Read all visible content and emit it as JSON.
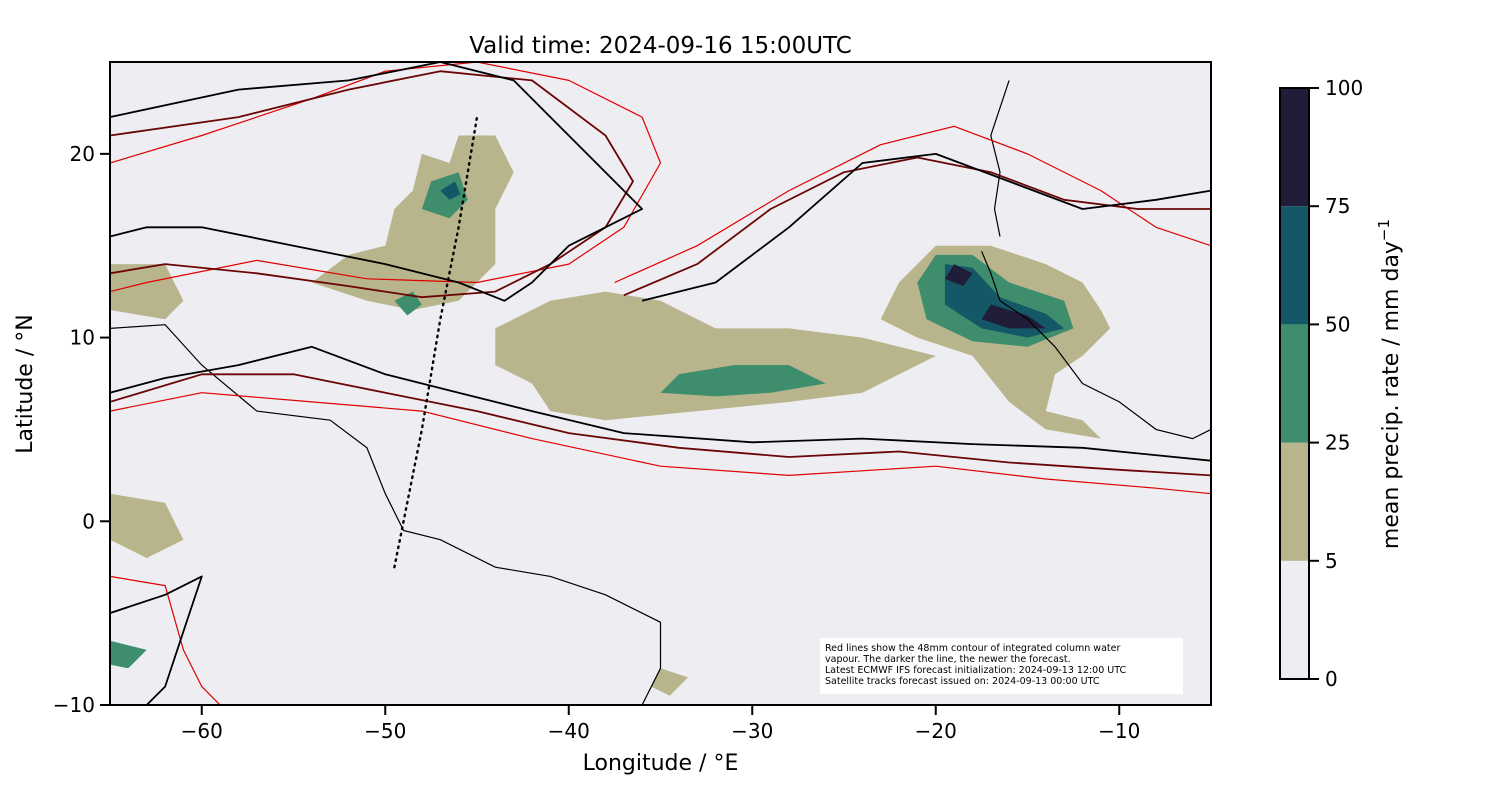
{
  "chart_data": {
    "type": "map",
    "title": "Valid time: 2024-09-16 15:00UTC",
    "xlabel": "Longitude / °E",
    "ylabel": "Latitude / °N",
    "xlim": [
      -65,
      -5
    ],
    "ylim": [
      -10,
      25
    ],
    "xticks": [
      -60,
      -50,
      -40,
      -30,
      -20,
      -10
    ],
    "yticks": [
      -10,
      0,
      10,
      20
    ],
    "xtick_labels": [
      "−60",
      "−50",
      "−40",
      "−30",
      "−20",
      "−10"
    ],
    "ytick_labels": [
      "−10",
      "0",
      "10",
      "20"
    ],
    "colorbar": {
      "label": "mean precip. rate / mm day",
      "label_superscript": "−1",
      "levels": [
        0,
        5,
        25,
        50,
        75,
        100
      ],
      "level_labels": [
        "0",
        "5",
        "25",
        "50",
        "75",
        "100"
      ],
      "colors": [
        "#ededf2",
        "#b8b48c",
        "#3e8d6d",
        "#145766",
        "#201d39"
      ]
    },
    "annotation_lines": [
      "Red lines show the 48mm contour of integrated column water",
      "vapour. The darker the line, the newer the forecast.",
      "Latest ECMWF IFS forecast initialization: 2024-09-13 12:00 UTC",
      "Satellite tracks forecast issued on: 2024-09-13 00:00 UTC"
    ],
    "satellite_track": [
      [
        -49.5,
        -2.5
      ],
      [
        -48,
        5
      ],
      [
        -47,
        11
      ],
      [
        -46,
        16
      ],
      [
        -45,
        22
      ]
    ],
    "precip_areas": [
      {
        "level": 1,
        "points": [
          [
            -46.5,
            19.5
          ],
          [
            -48,
            20
          ],
          [
            -48.5,
            18
          ],
          [
            -49.5,
            17
          ],
          [
            -50,
            15
          ],
          [
            -52,
            14.5
          ],
          [
            -54,
            13
          ],
          [
            -51,
            12
          ],
          [
            -48.5,
            11.5
          ],
          [
            -46,
            12
          ],
          [
            -44,
            14
          ],
          [
            -44,
            17
          ],
          [
            -43,
            19
          ],
          [
            -44,
            21
          ],
          [
            -46,
            21
          ]
        ]
      },
      {
        "level": 2,
        "points": [
          [
            -46,
            19
          ],
          [
            -47.5,
            18.5
          ],
          [
            -48,
            17
          ],
          [
            -46.5,
            16.5
          ],
          [
            -45.5,
            17.5
          ]
        ]
      },
      {
        "level": 3,
        "points": [
          [
            -46.2,
            18.5
          ],
          [
            -47,
            18
          ],
          [
            -46.5,
            17.5
          ],
          [
            -45.9,
            17.8
          ]
        ]
      },
      {
        "level": 2,
        "points": [
          [
            -48.5,
            12.5
          ],
          [
            -49.5,
            12
          ],
          [
            -48.8,
            11.2
          ],
          [
            -48,
            11.8
          ]
        ]
      },
      {
        "level": 1,
        "points": [
          [
            -41,
            12
          ],
          [
            -38,
            12.5
          ],
          [
            -35,
            12
          ],
          [
            -32,
            10.5
          ],
          [
            -28,
            10.5
          ],
          [
            -24,
            10
          ],
          [
            -20,
            9
          ],
          [
            -24,
            7
          ],
          [
            -28,
            6.5
          ],
          [
            -33,
            6
          ],
          [
            -38,
            5.5
          ],
          [
            -41,
            6
          ],
          [
            -42,
            7.5
          ],
          [
            -44,
            8.5
          ],
          [
            -44,
            10.5
          ]
        ]
      },
      {
        "level": 2,
        "points": [
          [
            -34,
            8
          ],
          [
            -31,
            8.5
          ],
          [
            -28,
            8.5
          ],
          [
            -26,
            7.5
          ],
          [
            -29,
            7
          ],
          [
            -32,
            6.8
          ],
          [
            -35,
            7
          ]
        ]
      },
      {
        "level": 1,
        "points": [
          [
            -20,
            15
          ],
          [
            -17,
            15
          ],
          [
            -14,
            14
          ],
          [
            -12,
            13
          ],
          [
            -11,
            11.5
          ],
          [
            -10.5,
            10.5
          ],
          [
            -12,
            9
          ],
          [
            -13.5,
            8
          ],
          [
            -14,
            6
          ],
          [
            -12,
            5.5
          ],
          [
            -11,
            4.5
          ],
          [
            -14,
            5
          ],
          [
            -16,
            6.5
          ],
          [
            -18,
            9
          ],
          [
            -21,
            10
          ],
          [
            -23,
            11
          ],
          [
            -22,
            13
          ]
        ]
      },
      {
        "level": 2,
        "points": [
          [
            -20,
            14.5
          ],
          [
            -18,
            14.5
          ],
          [
            -16,
            13
          ],
          [
            -13,
            12
          ],
          [
            -12.5,
            10.5
          ],
          [
            -15,
            9.5
          ],
          [
            -18,
            9.8
          ],
          [
            -20.5,
            11
          ],
          [
            -21,
            13
          ]
        ]
      },
      {
        "level": 3,
        "points": [
          [
            -19.5,
            14
          ],
          [
            -18,
            13.8
          ],
          [
            -16.5,
            12.2
          ],
          [
            -14,
            11.3
          ],
          [
            -13,
            10.5
          ],
          [
            -15,
            10
          ],
          [
            -17.5,
            10.5
          ],
          [
            -19.5,
            11.8
          ]
        ]
      },
      {
        "level": 4,
        "points": [
          [
            -19,
            14
          ],
          [
            -18,
            13.5
          ],
          [
            -18.5,
            12.8
          ],
          [
            -19.5,
            13.2
          ]
        ]
      },
      {
        "level": 4,
        "points": [
          [
            -17,
            11.8
          ],
          [
            -15,
            11.2
          ],
          [
            -14,
            10.5
          ],
          [
            -16,
            10.5
          ],
          [
            -17.5,
            11
          ]
        ]
      },
      {
        "level": 1,
        "points": [
          [
            -65,
            14
          ],
          [
            -62,
            14
          ],
          [
            -61,
            12
          ],
          [
            -62,
            11
          ],
          [
            -65,
            11.5
          ]
        ]
      },
      {
        "level": 1,
        "points": [
          [
            -65,
            1.5
          ],
          [
            -62,
            1
          ],
          [
            -61,
            -1
          ],
          [
            -63,
            -2
          ],
          [
            -65,
            -1
          ]
        ]
      },
      {
        "level": 2,
        "points": [
          [
            -65,
            -6.5
          ],
          [
            -63,
            -7
          ],
          [
            -64,
            -8
          ],
          [
            -65,
            -7.8
          ]
        ]
      },
      {
        "level": 1,
        "points": [
          [
            -35,
            -8
          ],
          [
            -33.5,
            -8.5
          ],
          [
            -34.5,
            -9.5
          ],
          [
            -35.5,
            -9
          ]
        ]
      }
    ],
    "cwv_contours": [
      {
        "age": "newest",
        "color": "#000000",
        "points": [
          [
            -65,
            22
          ],
          [
            -58,
            23.5
          ],
          [
            -52,
            24
          ],
          [
            -47,
            25
          ],
          [
            -43,
            24
          ],
          [
            -39,
            20
          ],
          [
            -37,
            18
          ],
          [
            -36,
            17
          ],
          [
            -40,
            15
          ],
          [
            -42,
            13
          ],
          [
            -43.5,
            12
          ],
          [
            -46,
            13
          ],
          [
            -50,
            14
          ],
          [
            -55,
            15
          ],
          [
            -60,
            16
          ],
          [
            -63,
            16
          ],
          [
            -65,
            15.5
          ]
        ]
      },
      {
        "age": "newest",
        "color": "#000000",
        "points": [
          [
            -65,
            7
          ],
          [
            -62,
            7.8
          ],
          [
            -58,
            8.5
          ],
          [
            -54,
            9.5
          ],
          [
            -50,
            8
          ],
          [
            -46,
            7
          ],
          [
            -42,
            6
          ],
          [
            -37,
            4.8
          ],
          [
            -30,
            4.3
          ],
          [
            -24,
            4.5
          ],
          [
            -18,
            4.2
          ],
          [
            -12,
            4
          ],
          [
            -5,
            3.3
          ]
        ]
      },
      {
        "age": "newest",
        "color": "#000000",
        "points": [
          [
            -65,
            -5
          ],
          [
            -62,
            -4
          ],
          [
            -60,
            -3
          ],
          [
            -61,
            -6
          ],
          [
            -62,
            -9
          ],
          [
            -63,
            -10
          ]
        ]
      },
      {
        "age": "newest",
        "color": "#000000",
        "points": [
          [
            -36,
            12
          ],
          [
            -32,
            13
          ],
          [
            -28,
            16
          ],
          [
            -24,
            19.5
          ],
          [
            -20,
            20
          ],
          [
            -16,
            18.5
          ],
          [
            -12,
            17
          ],
          [
            -8,
            17.5
          ],
          [
            -5,
            18
          ]
        ]
      },
      {
        "age": "older",
        "color": "#6b0606",
        "points": [
          [
            -65,
            21
          ],
          [
            -58,
            22
          ],
          [
            -52,
            23.5
          ],
          [
            -47,
            24.5
          ],
          [
            -42,
            24
          ],
          [
            -38,
            21
          ],
          [
            -36.5,
            18.5
          ],
          [
            -38,
            16
          ],
          [
            -41,
            14
          ],
          [
            -44,
            12.5
          ],
          [
            -48,
            12.2
          ],
          [
            -52,
            12.8
          ],
          [
            -57,
            13.5
          ],
          [
            -62,
            14
          ],
          [
            -65,
            13.5
          ]
        ]
      },
      {
        "age": "older",
        "color": "#6b0606",
        "points": [
          [
            -65,
            6.5
          ],
          [
            -60,
            8
          ],
          [
            -55,
            8
          ],
          [
            -50,
            7
          ],
          [
            -45,
            6
          ],
          [
            -40,
            4.8
          ],
          [
            -34,
            4
          ],
          [
            -28,
            3.5
          ],
          [
            -22,
            3.8
          ],
          [
            -16,
            3.2
          ],
          [
            -10,
            2.8
          ],
          [
            -5,
            2.5
          ]
        ]
      },
      {
        "age": "older",
        "color": "#6b0606",
        "points": [
          [
            -37,
            12.3
          ],
          [
            -33,
            14
          ],
          [
            -29,
            17
          ],
          [
            -25,
            19
          ],
          [
            -21,
            19.8
          ],
          [
            -17,
            19
          ],
          [
            -13,
            17.5
          ],
          [
            -9,
            17
          ],
          [
            -5,
            17
          ]
        ]
      },
      {
        "age": "oldest",
        "color": "#e00000",
        "points": [
          [
            -65,
            19.5
          ],
          [
            -60,
            21
          ],
          [
            -54,
            23
          ],
          [
            -50,
            24.5
          ],
          [
            -45,
            25
          ],
          [
            -40,
            24
          ],
          [
            -36,
            22
          ],
          [
            -35,
            19.5
          ],
          [
            -37,
            16
          ],
          [
            -40,
            14
          ],
          [
            -45,
            13
          ],
          [
            -51,
            13.2
          ],
          [
            -57,
            14.2
          ],
          [
            -63,
            13
          ],
          [
            -65,
            12.5
          ]
        ]
      },
      {
        "age": "oldest",
        "color": "#e00000",
        "points": [
          [
            -65,
            6
          ],
          [
            -60,
            7
          ],
          [
            -54,
            6.5
          ],
          [
            -48,
            6
          ],
          [
            -42,
            4.5
          ],
          [
            -35,
            3
          ],
          [
            -28,
            2.5
          ],
          [
            -20,
            3
          ],
          [
            -14,
            2.3
          ],
          [
            -8,
            1.8
          ],
          [
            -5,
            1.5
          ]
        ]
      },
      {
        "age": "oldest",
        "color": "#e00000",
        "points": [
          [
            -37.5,
            13
          ],
          [
            -33,
            15
          ],
          [
            -28,
            18
          ],
          [
            -23,
            20.5
          ],
          [
            -19,
            21.5
          ],
          [
            -15,
            20
          ],
          [
            -11,
            18
          ],
          [
            -8,
            16
          ],
          [
            -5,
            15
          ]
        ]
      },
      {
        "age": "oldest",
        "color": "#e00000",
        "points": [
          [
            -65,
            -3
          ],
          [
            -62,
            -3.5
          ],
          [
            -61,
            -7
          ],
          [
            -60,
            -9
          ],
          [
            -59,
            -10
          ]
        ]
      }
    ],
    "coastlines": [
      {
        "points": [
          [
            -65,
            10.5
          ],
          [
            -62,
            10.7
          ],
          [
            -60,
            8.5
          ],
          [
            -57,
            6
          ],
          [
            -53,
            5.5
          ],
          [
            -51,
            4
          ],
          [
            -50,
            1.5
          ],
          [
            -49,
            -0.5
          ],
          [
            -47,
            -1
          ],
          [
            -44,
            -2.5
          ],
          [
            -41,
            -3
          ],
          [
            -38,
            -4
          ],
          [
            -35,
            -5.5
          ],
          [
            -35,
            -8
          ],
          [
            -36,
            -10
          ]
        ]
      },
      {
        "points": [
          [
            -17.5,
            14.7
          ],
          [
            -17,
            13.5
          ],
          [
            -16.5,
            12
          ],
          [
            -15,
            11
          ],
          [
            -13.5,
            9.5
          ],
          [
            -12,
            7.5
          ],
          [
            -10,
            6.5
          ],
          [
            -8,
            5
          ],
          [
            -6,
            4.5
          ],
          [
            -5,
            5
          ]
        ]
      },
      {
        "points": [
          [
            -16,
            24
          ],
          [
            -17,
            21
          ],
          [
            -16.5,
            19
          ],
          [
            -16.8,
            17
          ],
          [
            -16.5,
            15.5
          ]
        ]
      }
    ]
  }
}
